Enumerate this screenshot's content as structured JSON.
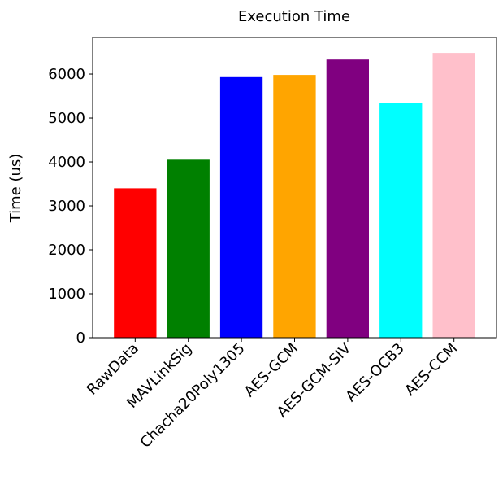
{
  "chart_data": {
    "type": "bar",
    "title": "Execution Time",
    "xlabel": "",
    "ylabel": "Time (us)",
    "categories": [
      "RawData",
      "MAVLinkSig",
      "Chacha20Poly1305",
      "AES-GCM",
      "AES-GCM-SIV",
      "AES-OCB3",
      "AES-CCM"
    ],
    "values": [
      3400,
      4050,
      5930,
      5980,
      6330,
      5340,
      6480
    ],
    "colors": [
      "#ff0000",
      "#008000",
      "#0000ff",
      "#ffa500",
      "#800080",
      "#00ffff",
      "#ffc0cb"
    ],
    "ylim": [
      0,
      6834
    ],
    "yticks": [
      0,
      1000,
      2000,
      3000,
      4000,
      5000,
      6000
    ],
    "grid": false,
    "legend": "none"
  }
}
